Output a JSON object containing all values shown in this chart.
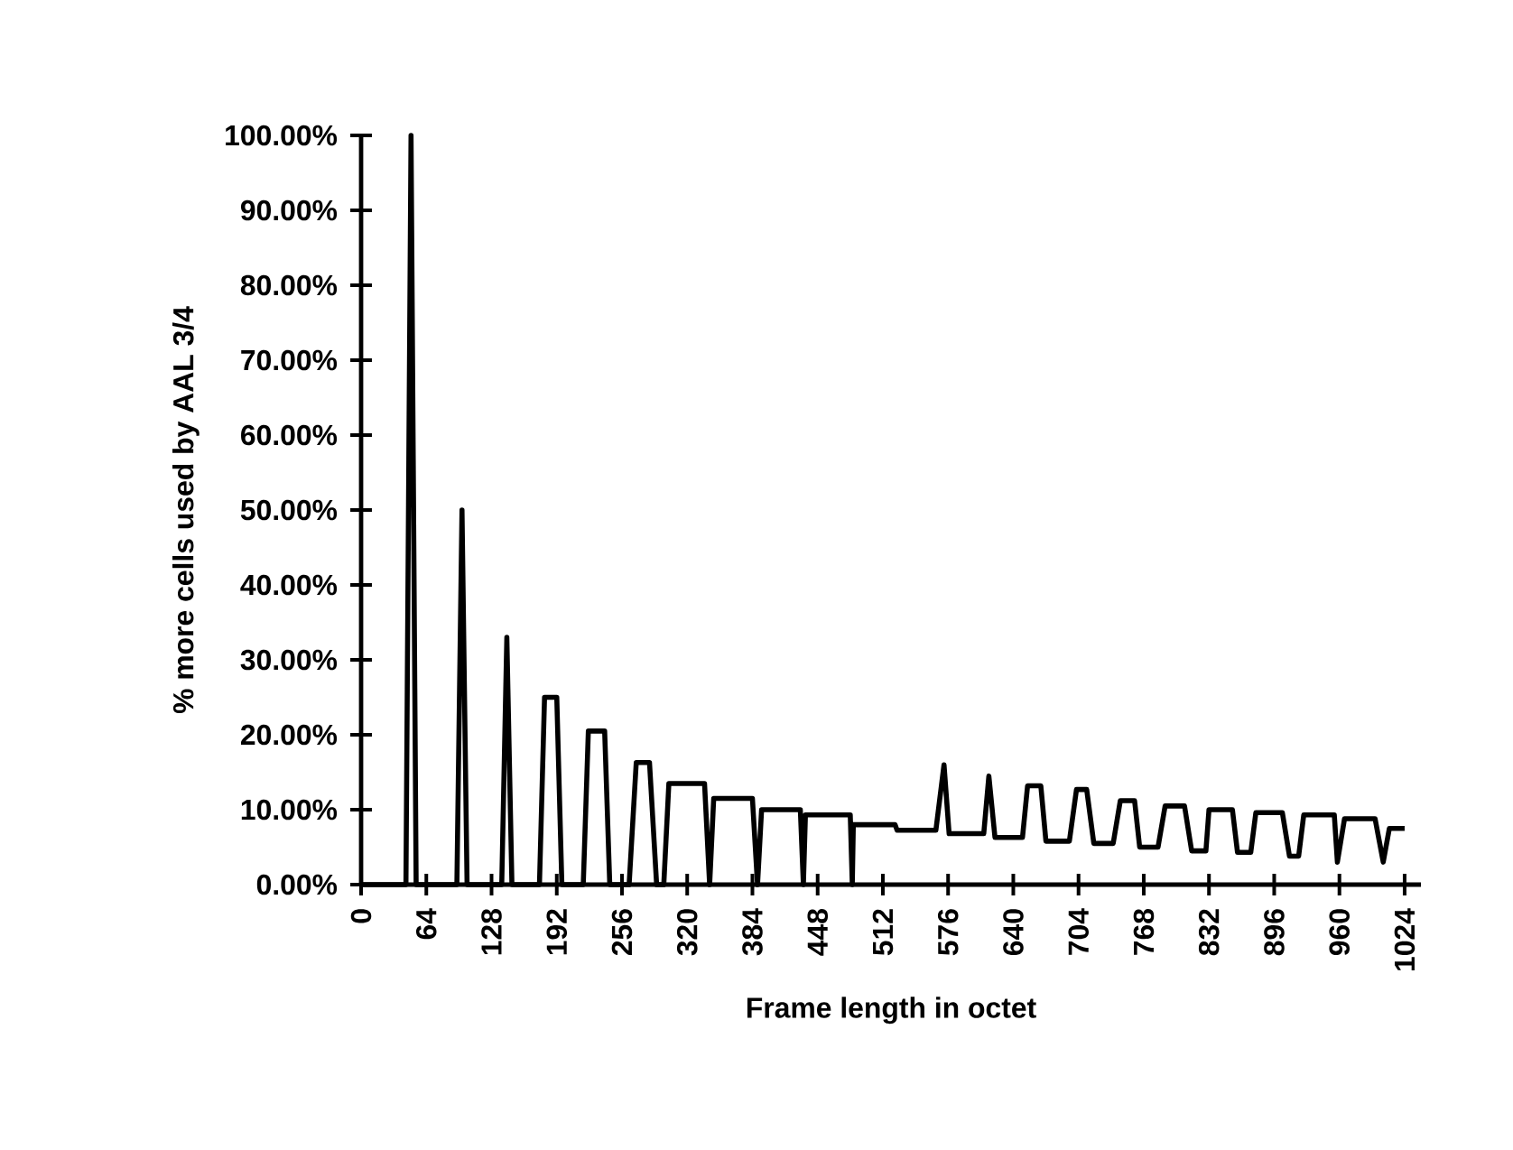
{
  "chart_data": {
    "type": "line",
    "xlabel": "Frame length in octet",
    "ylabel": "% more cells used by AAL 3/4",
    "color": "#000000",
    "x": [
      0,
      44,
      49,
      54,
      94,
      99,
      104,
      138,
      143,
      148,
      175,
      180,
      192,
      197,
      218,
      223,
      239,
      244,
      263,
      270,
      283,
      290,
      297,
      302,
      337,
      342,
      346,
      384,
      389,
      393,
      431,
      434,
      436,
      480,
      482,
      483,
      524,
      526,
      564,
      572,
      577,
      611,
      616,
      622,
      649,
      654,
      667,
      672,
      695,
      702,
      712,
      719,
      738,
      745,
      759,
      764,
      782,
      789,
      808,
      815,
      829,
      832,
      855,
      860,
      873,
      878,
      904,
      911,
      920,
      925,
      955,
      958,
      965,
      995,
      1003,
      1009,
      1024
    ],
    "values": [
      0,
      0,
      100,
      0,
      0,
      50,
      0,
      0,
      33,
      0,
      0,
      25,
      25,
      0,
      0,
      20.5,
      20.5,
      0,
      0,
      16.3,
      16.3,
      0,
      0,
      13.5,
      13.5,
      0,
      11.5,
      11.5,
      0,
      10,
      10,
      0,
      9.3,
      9.3,
      0,
      8,
      8,
      7.25,
      7.25,
      16,
      6.8,
      6.8,
      14.5,
      6.3,
      6.3,
      13.2,
      13.2,
      5.8,
      5.8,
      12.7,
      12.7,
      5.5,
      5.5,
      11.2,
      11.2,
      5,
      5,
      10.5,
      10.5,
      4.5,
      4.5,
      10,
      10,
      4.3,
      4.3,
      9.6,
      9.6,
      3.8,
      3.8,
      9.3,
      9.3,
      3,
      8.8,
      8.8,
      3,
      7.5,
      7.5
    ],
    "xlim": [
      0,
      1040
    ],
    "ylim": [
      0,
      100
    ],
    "xticks": [
      0,
      64,
      128,
      192,
      256,
      320,
      384,
      448,
      512,
      576,
      640,
      704,
      768,
      832,
      896,
      960,
      1024
    ],
    "yticks": [
      {
        "value": 0,
        "label": "0.00%"
      },
      {
        "value": 10,
        "label": "10.00%"
      },
      {
        "value": 20,
        "label": "20.00%"
      },
      {
        "value": 30,
        "label": "30.00%"
      },
      {
        "value": 40,
        "label": "40.00%"
      },
      {
        "value": 50,
        "label": "50.00%"
      },
      {
        "value": 60,
        "label": "60.00%"
      },
      {
        "value": 70,
        "label": "70.00%"
      },
      {
        "value": 80,
        "label": "80.00%"
      },
      {
        "value": 90,
        "label": "90.00%"
      },
      {
        "value": 100,
        "label": "100.00%"
      }
    ]
  }
}
